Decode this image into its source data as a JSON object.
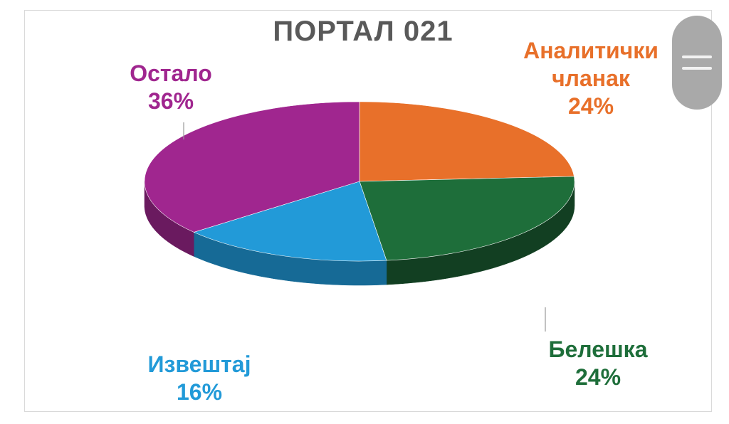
{
  "chart_data": {
    "type": "pie",
    "title": "ПОРТАЛ 021",
    "slices": [
      {
        "name": "Аналитички чланак",
        "label_lines": [
          "Аналитички",
          "чланак"
        ],
        "value": 24,
        "value_label": "24%",
        "color": "#e8702a",
        "dark": "#a84f1a"
      },
      {
        "name": "Белешка",
        "label_lines": [
          "Белешка"
        ],
        "value": 24,
        "value_label": "24%",
        "color": "#1e6e3a",
        "dark": "#123f22"
      },
      {
        "name": "Извештај",
        "label_lines": [
          "Извештај"
        ],
        "value": 16,
        "value_label": "16%",
        "color": "#229ad8",
        "dark": "#166a96"
      },
      {
        "name": "Остало",
        "label_lines": [
          "Остало"
        ],
        "value": 36,
        "value_label": "36%",
        "color": "#a0268f",
        "dark": "#6a1a5f"
      }
    ],
    "legend": "none"
  }
}
